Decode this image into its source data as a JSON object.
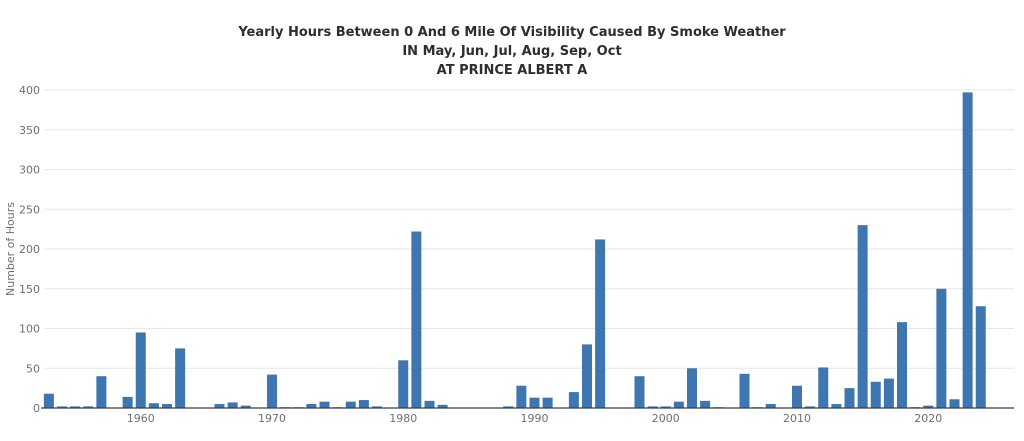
{
  "chart": {
    "title_line1": "Yearly Hours Between 0 And 6 Mile Of Visibility Caused By Smoke Weather",
    "title_line2": "IN May, Jun, Jul, Aug, Sep, Oct",
    "title_line3": "AT PRINCE ALBERT A"
  },
  "chart_data": {
    "type": "bar",
    "title": "Yearly Hours Between 0 And 6 Mile Of Visibility Caused By Smoke Weather IN May, Jun, Jul, Aug, Sep, Oct AT PRINCE ALBERT A",
    "xlabel": "",
    "ylabel": "Number of Hours",
    "ylim": [
      0,
      400
    ],
    "yticks": [
      0,
      50,
      100,
      150,
      200,
      250,
      300,
      350,
      400
    ],
    "xticks": [
      1960,
      1970,
      1980,
      1990,
      2000,
      2010,
      2020
    ],
    "grid": true,
    "legend": "none",
    "bar_color": "#3e76af",
    "grid_color": "#e6e6e6",
    "axis_color": "#3c3c3c",
    "tick_label_color": "#6f6f6f",
    "title_color": "#2e2e2e",
    "x": [
      1953,
      1954,
      1955,
      1956,
      1957,
      1958,
      1959,
      1960,
      1961,
      1962,
      1963,
      1964,
      1965,
      1966,
      1967,
      1968,
      1969,
      1970,
      1971,
      1972,
      1973,
      1974,
      1975,
      1976,
      1977,
      1978,
      1979,
      1980,
      1981,
      1982,
      1983,
      1984,
      1985,
      1986,
      1987,
      1988,
      1989,
      1990,
      1991,
      1992,
      1993,
      1994,
      1995,
      1996,
      1997,
      1998,
      1999,
      2000,
      2001,
      2002,
      2003,
      2004,
      2005,
      2006,
      2007,
      2008,
      2009,
      2010,
      2011,
      2012,
      2013,
      2014,
      2015,
      2016,
      2017,
      2018,
      2019,
      2020,
      2021,
      2022,
      2023,
      2024
    ],
    "values": [
      18,
      2,
      2,
      2,
      40,
      0,
      14,
      95,
      6,
      5,
      75,
      0,
      0,
      5,
      7,
      3,
      0,
      42,
      1,
      1,
      5,
      8,
      1,
      8,
      10,
      2,
      0,
      60,
      222,
      9,
      4,
      0,
      0,
      0,
      0,
      2,
      28,
      13,
      13,
      0,
      20,
      80,
      212,
      0,
      0,
      40,
      2,
      2,
      8,
      50,
      9,
      1,
      0,
      43,
      1,
      5,
      0,
      28,
      2,
      51,
      5,
      25,
      230,
      33,
      37,
      108,
      1,
      3,
      150,
      11,
      397,
      128
    ]
  }
}
